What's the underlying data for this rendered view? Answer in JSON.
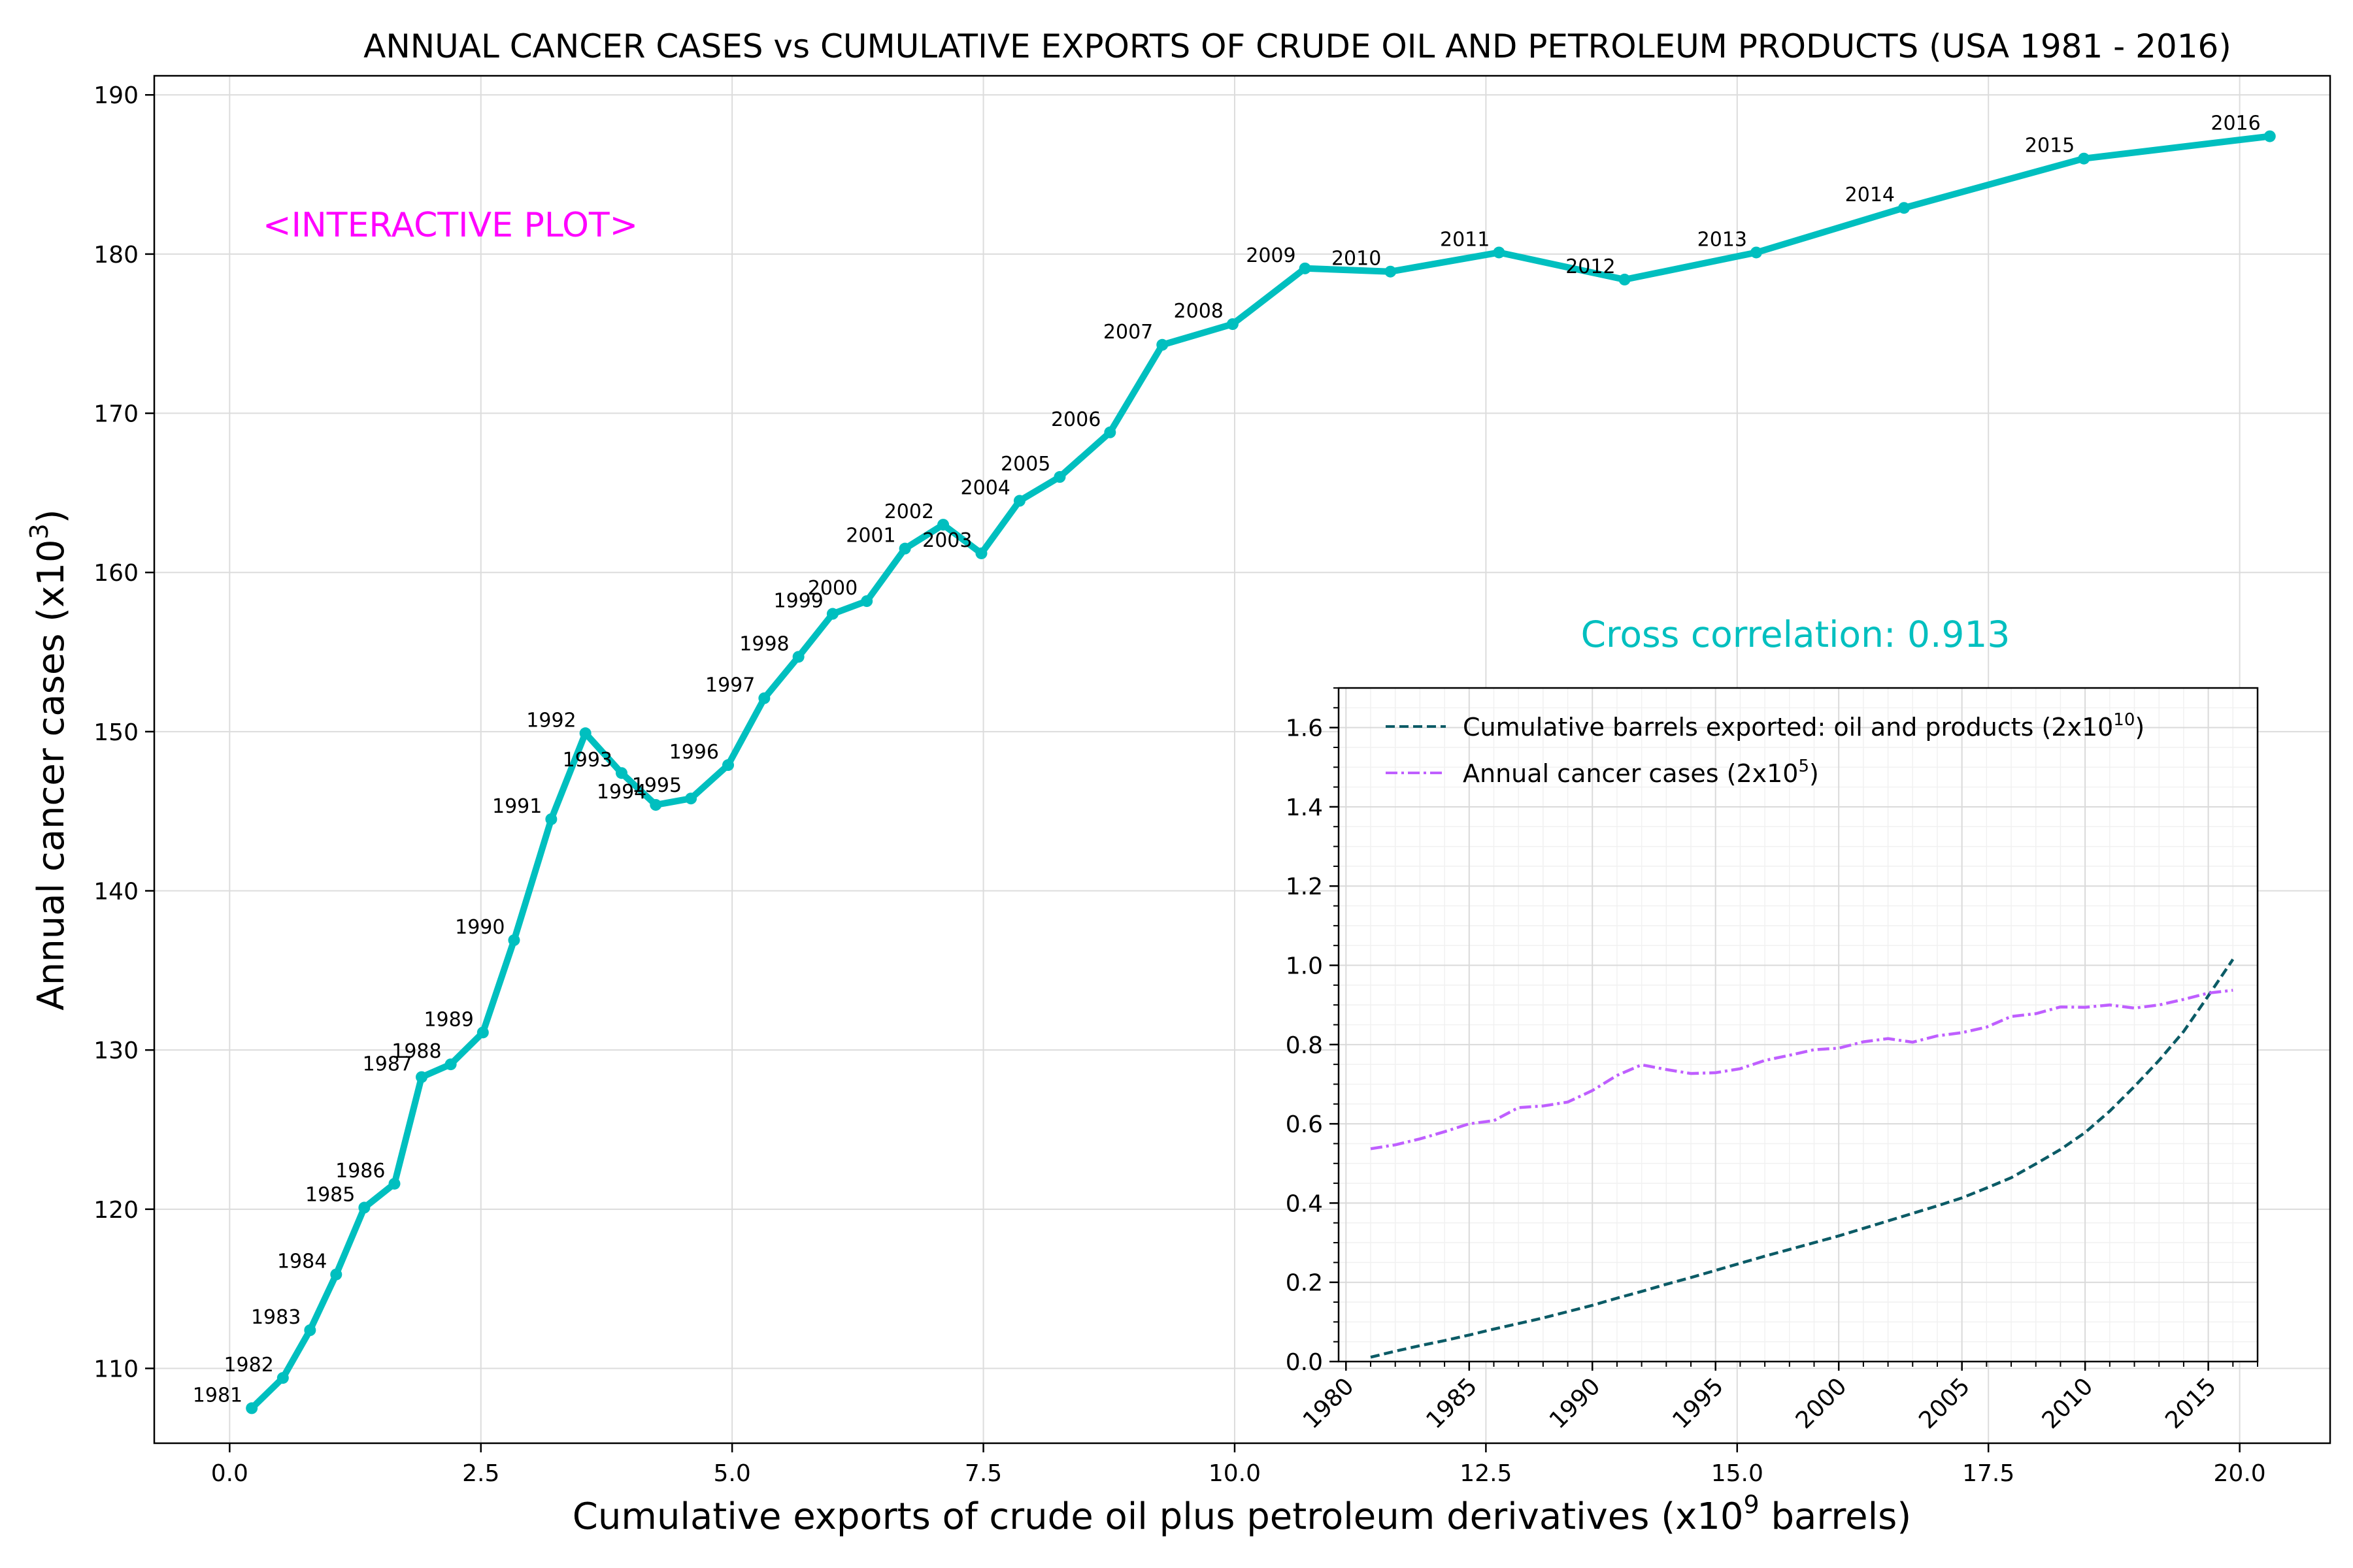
{
  "main_chart": {
    "type": "line",
    "title": "ANNUAL CANCER CASES vs CUMULATIVE EXPORTS OF CRUDE OIL AND PETROLEUM PRODUCTS (USA 1981 - 2016)",
    "xlabel_pre": "Cumulative exports of crude oil plus petroleum derivatives (x10",
    "xlabel_sup": "9",
    "xlabel_post": " barrels)",
    "ylabel_pre": "Annual cancer cases (x10",
    "ylabel_sup": "3",
    "ylabel_post": ")",
    "annotation": "<INTERACTIVE PLOT>",
    "correlation_text": "Cross correlation: 0.913",
    "colors": {
      "line": "#00BFBF",
      "annotation": "#FF00FF",
      "correlation": "#00BFBF"
    }
  },
  "chart_data": [
    {
      "type": "line",
      "xlim": [
        -0.75,
        20.9
      ],
      "ylim": [
        105.3,
        191.2
      ],
      "xticks": [
        0.0,
        2.5,
        5.0,
        7.5,
        10.0,
        12.5,
        15.0,
        17.5,
        20.0
      ],
      "xtick_labels": [
        "0.0",
        "2.5",
        "5.0",
        "7.5",
        "10.0",
        "12.5",
        "15.0",
        "17.5",
        "20.0"
      ],
      "yticks": [
        110,
        120,
        130,
        140,
        150,
        160,
        170,
        180,
        190
      ],
      "ytick_labels": [
        "110",
        "120",
        "130",
        "140",
        "150",
        "160",
        "170",
        "180",
        "190"
      ],
      "grid": true,
      "point_labels": [
        "1981",
        "1982",
        "1983",
        "1984",
        "1985",
        "1986",
        "1987",
        "1988",
        "1989",
        "1990",
        "1991",
        "1992",
        "1993",
        "1994",
        "1995",
        "1996",
        "1997",
        "1998",
        "1999",
        "2000",
        "2001",
        "2002",
        "2003",
        "2004",
        "2005",
        "2006",
        "2007",
        "2008",
        "2009",
        "2010",
        "2011",
        "2012",
        "2013",
        "2014",
        "2015",
        "2016"
      ],
      "x": [
        0.22,
        0.53,
        0.8,
        1.06,
        1.34,
        1.64,
        1.91,
        2.2,
        2.52,
        2.83,
        3.2,
        3.54,
        3.9,
        4.24,
        4.59,
        4.96,
        5.32,
        5.66,
        6.0,
        6.34,
        6.72,
        7.1,
        7.48,
        7.86,
        8.26,
        8.76,
        9.28,
        9.98,
        10.7,
        11.55,
        12.63,
        13.88,
        15.19,
        16.66,
        18.45,
        20.3
      ],
      "y": [
        107.5,
        109.4,
        112.4,
        115.9,
        120.1,
        121.6,
        128.3,
        129.1,
        131.1,
        136.9,
        144.5,
        149.9,
        147.4,
        145.4,
        145.8,
        147.9,
        152.1,
        154.7,
        157.4,
        158.2,
        161.5,
        163.0,
        161.2,
        164.5,
        166.0,
        168.8,
        174.3,
        175.6,
        179.1,
        178.9,
        180.1,
        178.4,
        180.1,
        182.9,
        186.0,
        187.4
      ]
    },
    {
      "type": "line",
      "xlim": [
        1979.7,
        2017.0
      ],
      "ylim": [
        0.0,
        1.7
      ],
      "xticks": [
        1980,
        1985,
        1990,
        1995,
        2000,
        2005,
        2010,
        2015
      ],
      "xtick_labels": [
        "1980",
        "1985",
        "1990",
        "1995",
        "2000",
        "2005",
        "2010",
        "2015"
      ],
      "yticks": [
        0.0,
        0.2,
        0.4,
        0.6,
        0.8,
        1.0,
        1.2,
        1.4,
        1.6
      ],
      "ytick_labels": [
        "0.0",
        "0.2",
        "0.4",
        "0.6",
        "0.8",
        "1.0",
        "1.2",
        "1.4",
        "1.6"
      ],
      "grid": true,
      "legend": "top-left",
      "x": [
        1981,
        1982,
        1983,
        1984,
        1985,
        1986,
        1987,
        1988,
        1989,
        1990,
        1991,
        1992,
        1993,
        1994,
        1995,
        1996,
        1997,
        1998,
        1999,
        2000,
        2001,
        2002,
        2003,
        2004,
        2005,
        2006,
        2007,
        2008,
        2009,
        2010,
        2011,
        2012,
        2013,
        2014,
        2015,
        2016
      ],
      "series": [
        {
          "name_pre": "Cumulative barrels exported: oil and products  (2x10",
          "name_sup": "10",
          "name_post": ")",
          "style": "dashed",
          "color": "#0B5B66",
          "values": [
            0.011,
            0.026,
            0.04,
            0.053,
            0.067,
            0.082,
            0.096,
            0.11,
            0.126,
            0.142,
            0.16,
            0.177,
            0.195,
            0.212,
            0.23,
            0.248,
            0.266,
            0.283,
            0.3,
            0.317,
            0.336,
            0.355,
            0.374,
            0.393,
            0.413,
            0.438,
            0.464,
            0.499,
            0.535,
            0.578,
            0.632,
            0.694,
            0.76,
            0.833,
            0.923,
            1.015
          ]
        },
        {
          "name_pre": "Annual cancer cases (2x10",
          "name_sup": "5",
          "name_post": ")",
          "style": "dashdot",
          "color": "#BF5FFF",
          "values": [
            0.537,
            0.547,
            0.562,
            0.58,
            0.6,
            0.608,
            0.641,
            0.645,
            0.655,
            0.684,
            0.722,
            0.749,
            0.737,
            0.727,
            0.729,
            0.739,
            0.76,
            0.773,
            0.787,
            0.791,
            0.807,
            0.815,
            0.806,
            0.822,
            0.83,
            0.844,
            0.871,
            0.878,
            0.895,
            0.894,
            0.9,
            0.892,
            0.9,
            0.914,
            0.93,
            0.937
          ]
        }
      ]
    }
  ]
}
